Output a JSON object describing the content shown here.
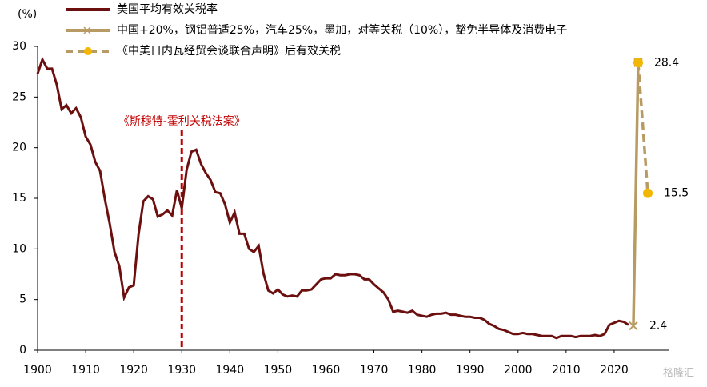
{
  "chart_data": {
    "type": "line",
    "y_unit": "(%)",
    "x": [
      1900,
      1901,
      1902,
      1903,
      1904,
      1905,
      1906,
      1907,
      1908,
      1909,
      1910,
      1911,
      1912,
      1913,
      1914,
      1915,
      1916,
      1917,
      1918,
      1919,
      1920,
      1921,
      1922,
      1923,
      1924,
      1925,
      1926,
      1927,
      1928,
      1929,
      1930,
      1931,
      1932,
      1933,
      1934,
      1935,
      1936,
      1937,
      1938,
      1939,
      1940,
      1941,
      1942,
      1943,
      1944,
      1945,
      1946,
      1947,
      1948,
      1949,
      1950,
      1951,
      1952,
      1953,
      1954,
      1955,
      1956,
      1957,
      1958,
      1959,
      1960,
      1961,
      1962,
      1963,
      1964,
      1965,
      1966,
      1967,
      1968,
      1969,
      1970,
      1971,
      1972,
      1973,
      1974,
      1975,
      1976,
      1977,
      1978,
      1979,
      1980,
      1981,
      1982,
      1983,
      1984,
      1985,
      1986,
      1987,
      1988,
      1989,
      1990,
      1991,
      1992,
      1993,
      1994,
      1995,
      1996,
      1997,
      1998,
      1999,
      2000,
      2001,
      2002,
      2003,
      2004,
      2005,
      2006,
      2007,
      2008,
      2009,
      2010,
      2011,
      2012,
      2013,
      2014,
      2015,
      2016,
      2017,
      2018,
      2019,
      2020,
      2021,
      2022,
      2023
    ],
    "series": [
      {
        "name": "美国平均有效关税率",
        "color": "#6b0f0f",
        "values": [
          27.3,
          28.7,
          27.8,
          27.8,
          26.2,
          23.8,
          24.2,
          23.4,
          23.9,
          23.0,
          21.1,
          20.3,
          18.6,
          17.7,
          14.9,
          12.5,
          9.7,
          8.3,
          5.2,
          6.2,
          6.4,
          11.4,
          14.7,
          15.2,
          14.9,
          13.2,
          13.4,
          13.8,
          13.3,
          15.8,
          14.0,
          17.8,
          19.6,
          19.8,
          18.4,
          17.5,
          16.8,
          15.6,
          15.5,
          14.4,
          12.6,
          13.6,
          11.5,
          11.5,
          10.0,
          9.7,
          10.3,
          7.6,
          5.9,
          5.6,
          6.0,
          5.5,
          5.3,
          5.4,
          5.3,
          5.9,
          5.9,
          6.0,
          6.5,
          7.0,
          7.1,
          7.1,
          7.5,
          7.4,
          7.4,
          7.5,
          7.5,
          7.4,
          7.0,
          7.0,
          6.5,
          6.1,
          5.7,
          5.0,
          3.8,
          3.9,
          3.8,
          3.7,
          3.9,
          3.5,
          3.4,
          3.3,
          3.5,
          3.6,
          3.6,
          3.7,
          3.5,
          3.5,
          3.4,
          3.3,
          3.3,
          3.2,
          3.2,
          3.0,
          2.6,
          2.4,
          2.1,
          2.0,
          1.8,
          1.6,
          1.6,
          1.7,
          1.6,
          1.6,
          1.5,
          1.4,
          1.4,
          1.4,
          1.2,
          1.4,
          1.4,
          1.4,
          1.3,
          1.4,
          1.4,
          1.4,
          1.5,
          1.4,
          1.6,
          2.5,
          2.7,
          2.9,
          2.8,
          2.5
        ]
      },
      {
        "name": "中国+20%，钢铝普适25%，汽车25%，墨加，对等关税（10%），豁免半导体及消费电子",
        "color": "#b89b62",
        "marker": "x",
        "x": [
          2024,
          2025
        ],
        "values": [
          2.4,
          28.4
        ],
        "labeled": [
          0,
          1
        ]
      },
      {
        "name": "《中美日内瓦经贸会谈联合声明》后有效关税",
        "color": "#b89b62",
        "marker_color": "#f2b705",
        "marker": "circle",
        "dashed": true,
        "x": [
          2025,
          2027
        ],
        "values": [
          28.4,
          15.5
        ],
        "labeled": [
          1
        ]
      }
    ],
    "annotations": [
      {
        "x": 1930,
        "text": "《斯穆特-霍利关税法案》",
        "color": "#c00000"
      }
    ],
    "xlim": [
      1900,
      2028
    ],
    "ylim": [
      0,
      30
    ],
    "xticks": [
      1900,
      1910,
      1920,
      1930,
      1940,
      1950,
      1960,
      1970,
      1980,
      1990,
      2000,
      2010,
      2020
    ],
    "yticks": [
      0,
      5,
      10,
      15,
      20,
      25,
      30
    ],
    "watermark": "格隆汇"
  }
}
